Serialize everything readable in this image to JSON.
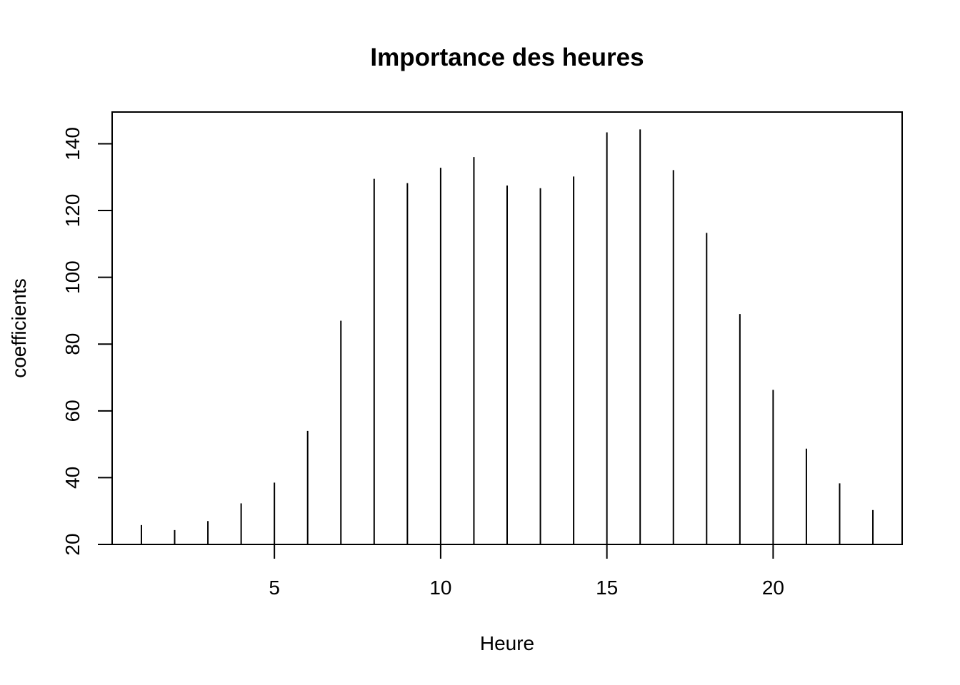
{
  "chart_data": {
    "type": "bar",
    "style": "vertical-lines",
    "title": "Importance des heures",
    "xlabel": "Heure",
    "ylabel": "coefficients",
    "x": [
      1,
      2,
      3,
      4,
      5,
      6,
      7,
      8,
      9,
      10,
      11,
      12,
      13,
      14,
      15,
      16,
      17,
      18,
      19,
      20,
      21,
      22,
      23
    ],
    "values": [
      25.8,
      24.3,
      27.0,
      32.3,
      38.5,
      54.0,
      87.0,
      129.5,
      128.2,
      132.8,
      136.0,
      127.5,
      126.7,
      130.2,
      143.4,
      144.3,
      132.1,
      113.3,
      89.0,
      66.3,
      48.7,
      38.3,
      30.3
    ],
    "xlim": [
      0.12,
      23.88
    ],
    "ylim": [
      20,
      149.5
    ],
    "xticks": [
      5,
      10,
      15,
      20
    ],
    "yticks": [
      20,
      40,
      60,
      80,
      100,
      120,
      140
    ],
    "grid": false,
    "legend": false
  }
}
